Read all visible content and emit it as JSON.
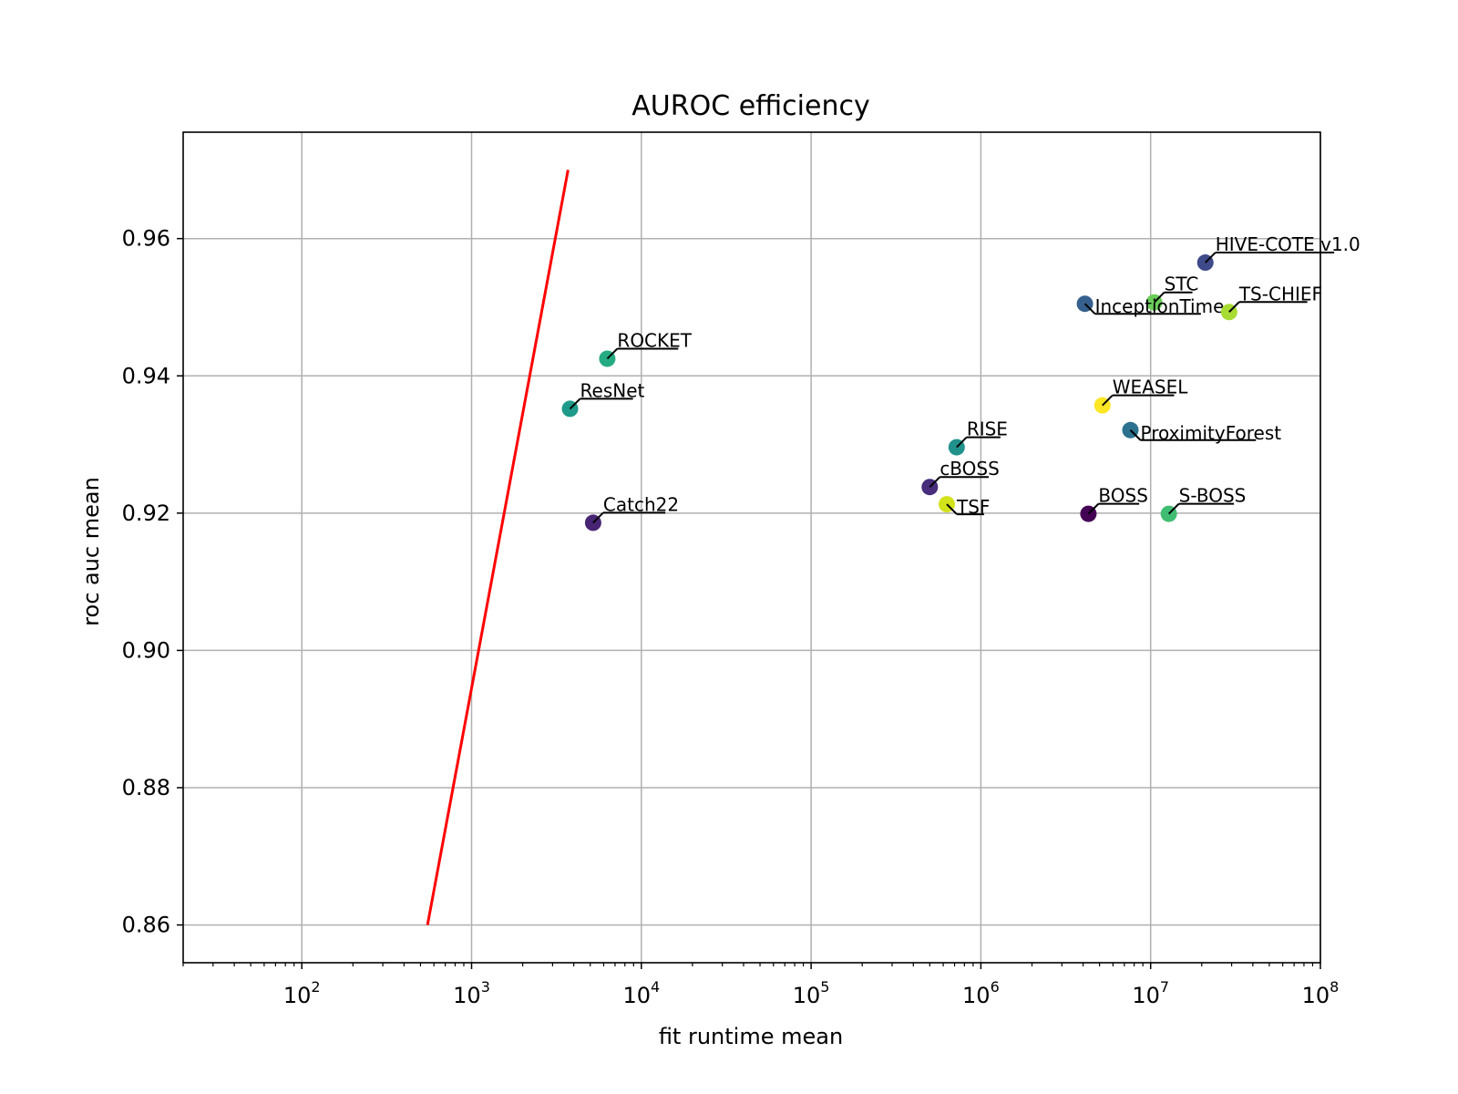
{
  "chart_data": {
    "type": "scatter",
    "title": "AUROC efficiency",
    "xlabel": "fit runtime mean",
    "ylabel": "roc auc mean",
    "xscale": "log",
    "xlim": [
      20,
      100000000
    ],
    "ylim": [
      0.8545,
      0.9755
    ],
    "x_ticks": [
      {
        "base": "10",
        "exp": "2",
        "value": 100
      },
      {
        "base": "10",
        "exp": "3",
        "value": 1000
      },
      {
        "base": "10",
        "exp": "4",
        "value": 10000
      },
      {
        "base": "10",
        "exp": "5",
        "value": 100000
      },
      {
        "base": "10",
        "exp": "6",
        "value": 1000000
      },
      {
        "base": "10",
        "exp": "7",
        "value": 10000000
      },
      {
        "base": "10",
        "exp": "8",
        "value": 100000000
      }
    ],
    "y_ticks": [
      {
        "label": "0.86",
        "value": 0.86
      },
      {
        "label": "0.88",
        "value": 0.88
      },
      {
        "label": "0.90",
        "value": 0.9
      },
      {
        "label": "0.92",
        "value": 0.92
      },
      {
        "label": "0.94",
        "value": 0.94
      },
      {
        "label": "0.96",
        "value": 0.96
      }
    ],
    "grid": true,
    "points": [
      {
        "label": "HIVE-COTE v1.0",
        "x": 21000000,
        "y": 0.9565,
        "color": "#3e4a89",
        "label_offset": [
          1,
          -1
        ]
      },
      {
        "label": "STC",
        "x": 10500000,
        "y": 0.9507,
        "color": "#6ccd5a",
        "label_offset": [
          1,
          -1
        ]
      },
      {
        "label": "InceptionTime",
        "x": 4100000,
        "y": 0.9505,
        "color": "#355f8d",
        "label_offset": [
          1,
          1
        ]
      },
      {
        "label": "TS-CHIEF",
        "x": 29000000,
        "y": 0.9493,
        "color": "#a8db34",
        "label_offset": [
          1,
          -1
        ]
      },
      {
        "label": "ROCKET",
        "x": 6300,
        "y": 0.9425,
        "color": "#25ab82",
        "label_offset": [
          1,
          -1
        ]
      },
      {
        "label": "ResNet",
        "x": 3800,
        "y": 0.9352,
        "color": "#1f9a8a",
        "label_offset": [
          1,
          -1
        ]
      },
      {
        "label": "WEASEL",
        "x": 5200000,
        "y": 0.9357,
        "color": "#fde725",
        "label_offset": [
          1,
          -1
        ]
      },
      {
        "label": "ProximityForest",
        "x": 7600000,
        "y": 0.9321,
        "color": "#2c728e",
        "label_offset": [
          1,
          1
        ]
      },
      {
        "label": "RISE",
        "x": 720000,
        "y": 0.9296,
        "color": "#21918c",
        "label_offset": [
          1,
          -1
        ]
      },
      {
        "label": "cBOSS",
        "x": 500000,
        "y": 0.9238,
        "color": "#472d7b",
        "label_offset": [
          1,
          -1
        ]
      },
      {
        "label": "TSF",
        "x": 630000,
        "y": 0.9213,
        "color": "#d2e21b",
        "label_offset": [
          1,
          1
        ]
      },
      {
        "label": "BOSS",
        "x": 4300000,
        "y": 0.9199,
        "color": "#440154",
        "label_offset": [
          1,
          -1
        ]
      },
      {
        "label": "S-BOSS",
        "x": 12800000,
        "y": 0.9199,
        "color": "#40bd72",
        "label_offset": [
          1,
          -1
        ]
      },
      {
        "label": "Catch22",
        "x": 5200,
        "y": 0.9186,
        "color": "#482475",
        "label_offset": [
          1,
          -1
        ]
      }
    ],
    "trend_line": {
      "color": "#ff0000",
      "points": [
        [
          550,
          0.86
        ],
        [
          3700,
          0.97
        ]
      ]
    }
  }
}
